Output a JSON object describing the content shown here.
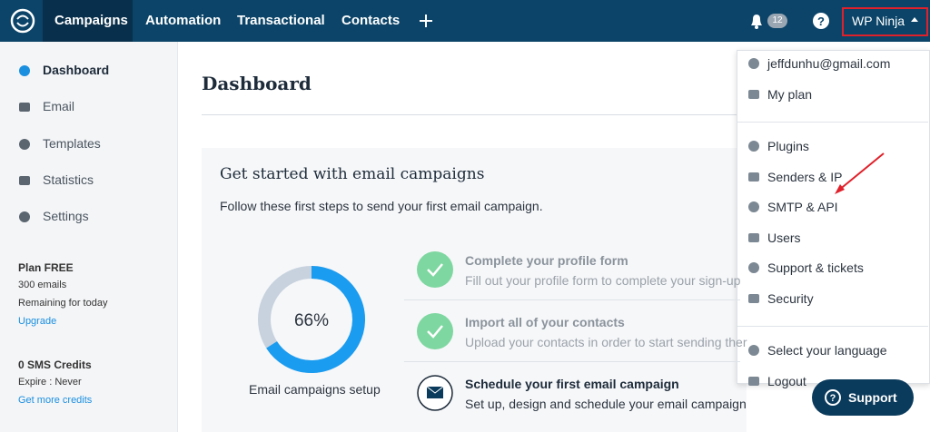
{
  "nav": {
    "items": [
      "Campaigns",
      "Automation",
      "Transactional",
      "Contacts"
    ],
    "notifications": "12",
    "account": "WP Ninja"
  },
  "sidebar": {
    "menu": [
      "Dashboard",
      "Email",
      "Templates",
      "Statistics",
      "Settings"
    ],
    "plan": {
      "title": "Plan FREE",
      "emails": "300 emails",
      "note": "Remaining for today",
      "link": "Upgrade"
    },
    "sms": {
      "title": "0 SMS Credits",
      "expire": "Expire : Never",
      "link": "Get more credits"
    }
  },
  "main": {
    "title": "Dashboard",
    "card": {
      "title": "Get started with email campaigns",
      "subtitle": "Follow these first steps to send your first email campaign.",
      "progress": {
        "value": 66,
        "label": "66%"
      },
      "progress_caption": "Email campaigns setup",
      "steps": [
        {
          "title": "Complete your profile form",
          "description": "Fill out your profile form to complete your sign-up",
          "done": true
        },
        {
          "title": "Import all of your contacts",
          "description": "Upload your contacts in order to start sending ther",
          "done": true
        },
        {
          "title": "Schedule your first email campaign",
          "description": "Set up, design and schedule your email campaign",
          "done": false
        }
      ]
    }
  },
  "dropdown": {
    "groups": [
      [
        "jeffdunhu@gmail.com",
        "My plan"
      ],
      [
        "Plugins",
        "Senders & IP",
        "SMTP & API",
        "Users",
        "Support & tickets",
        "Security"
      ],
      [
        "Select your language",
        "Logout"
      ]
    ]
  },
  "support_button": "Support"
}
